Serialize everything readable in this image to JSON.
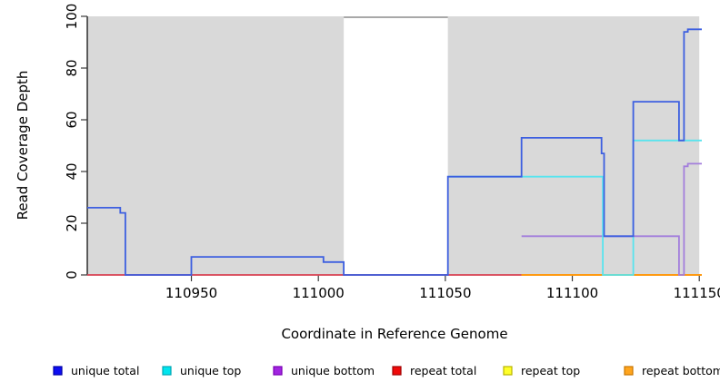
{
  "chart_data": {
    "type": "line",
    "step": true,
    "title": "",
    "xlabel": "Coordinate in Reference Genome",
    "ylabel": "Read Coverage Depth",
    "xlim": [
      110909,
      111151
    ],
    "ylim": [
      0,
      100
    ],
    "grid": false,
    "legend_position": "bottom",
    "x_ticks": [
      {
        "value": 110950,
        "label": "110950"
      },
      {
        "value": 111000,
        "label": "111000"
      },
      {
        "value": 111050,
        "label": "111050"
      },
      {
        "value": 111100,
        "label": "111100"
      },
      {
        "value": 111150,
        "label": "111150"
      }
    ],
    "y_ticks": [
      {
        "value": 0,
        "label": "0"
      },
      {
        "value": 20,
        "label": "20"
      },
      {
        "value": 40,
        "label": "40"
      },
      {
        "value": 60,
        "label": "60"
      },
      {
        "value": 80,
        "label": "80"
      },
      {
        "value": 100,
        "label": "100"
      }
    ],
    "background_bands": [
      {
        "name": "gray-band-left",
        "x0": 110909,
        "x1": 111010,
        "y0": 0,
        "y1": 100,
        "color": "#d9d9d9"
      },
      {
        "name": "gray-band-right",
        "x0": 111051,
        "x1": 111150,
        "y0": 0,
        "y1": 100,
        "color": "#d9d9d9"
      },
      {
        "name": "gap-top-line",
        "x0": 111010,
        "x1": 111051,
        "y0": 99.3,
        "y1": 100,
        "color": "#a8a8a8"
      }
    ],
    "series": [
      {
        "name": "repeat total",
        "color": "#e0485a",
        "points": [
          [
            110909,
            0
          ],
          [
            111151,
            0
          ]
        ]
      },
      {
        "name": "repeat top",
        "color": "#ffff00",
        "points": [
          [
            111080,
            0
          ],
          [
            111151,
            0
          ]
        ]
      },
      {
        "name": "repeat bottom",
        "color": "#ff9212",
        "points": [
          [
            111080,
            0
          ],
          [
            111151,
            0
          ]
        ]
      },
      {
        "name": "unique bottom",
        "color": "#a37edc",
        "points": [
          [
            111080,
            15
          ],
          [
            111142,
            15
          ],
          [
            111142,
            0
          ],
          [
            111144,
            0
          ],
          [
            111144,
            42
          ],
          [
            111145.5,
            42
          ],
          [
            111145.5,
            43
          ],
          [
            111151,
            43
          ]
        ]
      },
      {
        "name": "unique top",
        "color": "#58e4ee",
        "points": [
          [
            111051,
            38
          ],
          [
            111112,
            38
          ],
          [
            111112,
            0
          ],
          [
            111124,
            0
          ],
          [
            111124,
            52
          ],
          [
            111151,
            52
          ]
        ]
      },
      {
        "name": "unique total",
        "color": "#3d5fe0",
        "points": [
          [
            110909,
            26
          ],
          [
            110922,
            26
          ],
          [
            110922,
            24
          ],
          [
            110924,
            24
          ],
          [
            110924,
            0
          ],
          [
            110950,
            0
          ],
          [
            110950,
            7
          ],
          [
            111002,
            7
          ],
          [
            111002,
            5
          ],
          [
            111010,
            5
          ],
          [
            111010,
            0
          ],
          [
            111051,
            0
          ],
          [
            111051,
            38
          ],
          [
            111080,
            38
          ],
          [
            111080,
            53
          ],
          [
            111111.5,
            53
          ],
          [
            111111.5,
            47
          ],
          [
            111112.5,
            47
          ],
          [
            111112.5,
            15
          ],
          [
            111124,
            15
          ],
          [
            111124,
            67
          ],
          [
            111142,
            67
          ],
          [
            111142,
            52
          ],
          [
            111144,
            52
          ],
          [
            111144,
            94
          ],
          [
            111145.5,
            94
          ],
          [
            111145.5,
            95
          ],
          [
            111151,
            95
          ]
        ]
      }
    ],
    "legend": [
      {
        "label": "unique total",
        "fill": "#0d0df2",
        "border": "#0000a6"
      },
      {
        "label": "unique top",
        "fill": "#00e5ee",
        "border": "#00a6b4"
      },
      {
        "label": "unique bottom",
        "fill": "#a125e0",
        "border": "#7a00b4"
      },
      {
        "label": "repeat total",
        "fill": "#f00a0a",
        "border": "#a00000"
      },
      {
        "label": "repeat top",
        "fill": "#ffff2a",
        "border": "#b8b400"
      },
      {
        "label": "repeat bottom",
        "fill": "#ffa51e",
        "border": "#c77400"
      }
    ]
  }
}
